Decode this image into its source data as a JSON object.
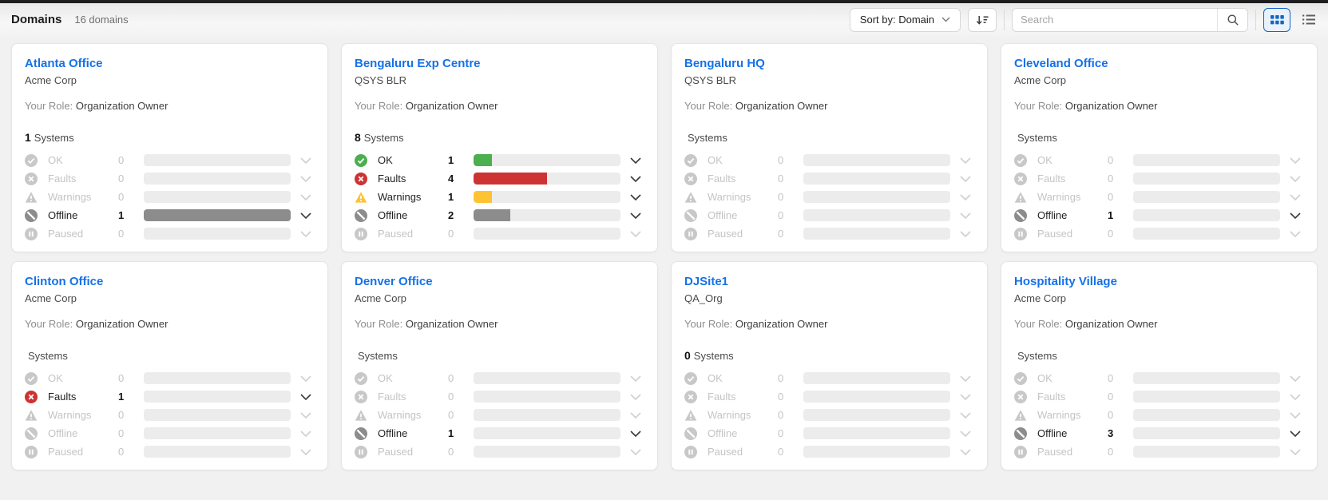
{
  "header": {
    "title": "Domains",
    "count_label": "16 domains",
    "sort_label": "Sort by: Domain",
    "search_placeholder": "Search",
    "icons": {
      "sort_chevron": "chevron-down-icon",
      "sort_direction": "sort-descending-icon",
      "search": "search-icon",
      "grid_view": "grid-view-icon",
      "list_view": "list-view-icon"
    }
  },
  "labels": {
    "role_label": "Your Role:",
    "systems_label": "Systems"
  },
  "colors": {
    "accent_blue": "#1571E8",
    "toggle_blue": "#1565C0",
    "ok_green": "#4CAF50",
    "faults_red": "#CE3333",
    "warnings_amber": "#FFC233",
    "offline_gray": "#8C8C8C",
    "paused_gray": "#9E9E9E",
    "disabled_gray": "#C8C8C8",
    "bar_track": "#ECECEC"
  },
  "status_meta": [
    {
      "key": "ok",
      "label": "OK",
      "icon": "ok-check-circle-icon",
      "color": "#4CAF50"
    },
    {
      "key": "faults",
      "label": "Faults",
      "icon": "faults-x-circle-icon",
      "color": "#CE3333"
    },
    {
      "key": "warnings",
      "label": "Warnings",
      "icon": "warning-triangle-icon",
      "color": "#FFC233"
    },
    {
      "key": "offline",
      "label": "Offline",
      "icon": "offline-slash-circle-icon",
      "color": "#8C8C8C"
    },
    {
      "key": "paused",
      "label": "Paused",
      "icon": "paused-circle-icon",
      "color": "#9E9E9E"
    }
  ],
  "cards": [
    {
      "name": "Atlanta Office",
      "org": "Acme Corp",
      "role": "Organization Owner",
      "systems_count": "1",
      "statuses": [
        {
          "count": "0",
          "active": false,
          "fill_pct": 0
        },
        {
          "count": "0",
          "active": false,
          "fill_pct": 0
        },
        {
          "count": "0",
          "active": false,
          "fill_pct": 0
        },
        {
          "count": "1",
          "active": true,
          "fill_pct": 100
        },
        {
          "count": "0",
          "active": false,
          "fill_pct": 0
        }
      ]
    },
    {
      "name": "Bengaluru Exp Centre",
      "org": "QSYS BLR",
      "role": "Organization Owner",
      "systems_count": "8",
      "statuses": [
        {
          "count": "1",
          "active": true,
          "fill_pct": 12.5
        },
        {
          "count": "4",
          "active": true,
          "fill_pct": 50
        },
        {
          "count": "1",
          "active": true,
          "fill_pct": 12.5
        },
        {
          "count": "2",
          "active": true,
          "fill_pct": 25
        },
        {
          "count": "0",
          "active": false,
          "fill_pct": 0
        }
      ]
    },
    {
      "name": "Bengaluru HQ",
      "org": "QSYS BLR",
      "role": "Organization Owner",
      "systems_count": "",
      "statuses": [
        {
          "count": "0",
          "active": false,
          "fill_pct": 0
        },
        {
          "count": "0",
          "active": false,
          "fill_pct": 0
        },
        {
          "count": "0",
          "active": false,
          "fill_pct": 0
        },
        {
          "count": "0",
          "active": false,
          "fill_pct": 0
        },
        {
          "count": "0",
          "active": false,
          "fill_pct": 0
        }
      ]
    },
    {
      "name": "Cleveland Office",
      "org": "Acme Corp",
      "role": "Organization Owner",
      "systems_count": "",
      "statuses": [
        {
          "count": "0",
          "active": false,
          "fill_pct": 0
        },
        {
          "count": "0",
          "active": false,
          "fill_pct": 0
        },
        {
          "count": "0",
          "active": false,
          "fill_pct": 0
        },
        {
          "count": "1",
          "active": true,
          "fill_pct": 0
        },
        {
          "count": "0",
          "active": false,
          "fill_pct": 0
        }
      ]
    },
    {
      "name": "Clinton Office",
      "org": "Acme Corp",
      "role": "Organization Owner",
      "systems_count": "",
      "statuses": [
        {
          "count": "0",
          "active": false,
          "fill_pct": 0
        },
        {
          "count": "1",
          "active": true,
          "fill_pct": 0
        },
        {
          "count": "0",
          "active": false,
          "fill_pct": 0
        },
        {
          "count": "0",
          "active": false,
          "fill_pct": 0
        },
        {
          "count": "0",
          "active": false,
          "fill_pct": 0
        }
      ]
    },
    {
      "name": "Denver Office",
      "org": "Acme Corp",
      "role": "Organization Owner",
      "systems_count": "",
      "statuses": [
        {
          "count": "0",
          "active": false,
          "fill_pct": 0
        },
        {
          "count": "0",
          "active": false,
          "fill_pct": 0
        },
        {
          "count": "0",
          "active": false,
          "fill_pct": 0
        },
        {
          "count": "1",
          "active": true,
          "fill_pct": 0
        },
        {
          "count": "0",
          "active": false,
          "fill_pct": 0
        }
      ]
    },
    {
      "name": "DJSite1",
      "org": "QA_Org",
      "role": "Organization Owner",
      "systems_count": "0",
      "statuses": [
        {
          "count": "0",
          "active": false,
          "fill_pct": 0
        },
        {
          "count": "0",
          "active": false,
          "fill_pct": 0
        },
        {
          "count": "0",
          "active": false,
          "fill_pct": 0
        },
        {
          "count": "0",
          "active": false,
          "fill_pct": 0
        },
        {
          "count": "0",
          "active": false,
          "fill_pct": 0
        }
      ]
    },
    {
      "name": "Hospitality Village",
      "org": "Acme Corp",
      "role": "Organization Owner",
      "systems_count": "",
      "statuses": [
        {
          "count": "0",
          "active": false,
          "fill_pct": 0
        },
        {
          "count": "0",
          "active": false,
          "fill_pct": 0
        },
        {
          "count": "0",
          "active": false,
          "fill_pct": 0
        },
        {
          "count": "3",
          "active": true,
          "fill_pct": 0
        },
        {
          "count": "0",
          "active": false,
          "fill_pct": 0
        }
      ]
    }
  ]
}
